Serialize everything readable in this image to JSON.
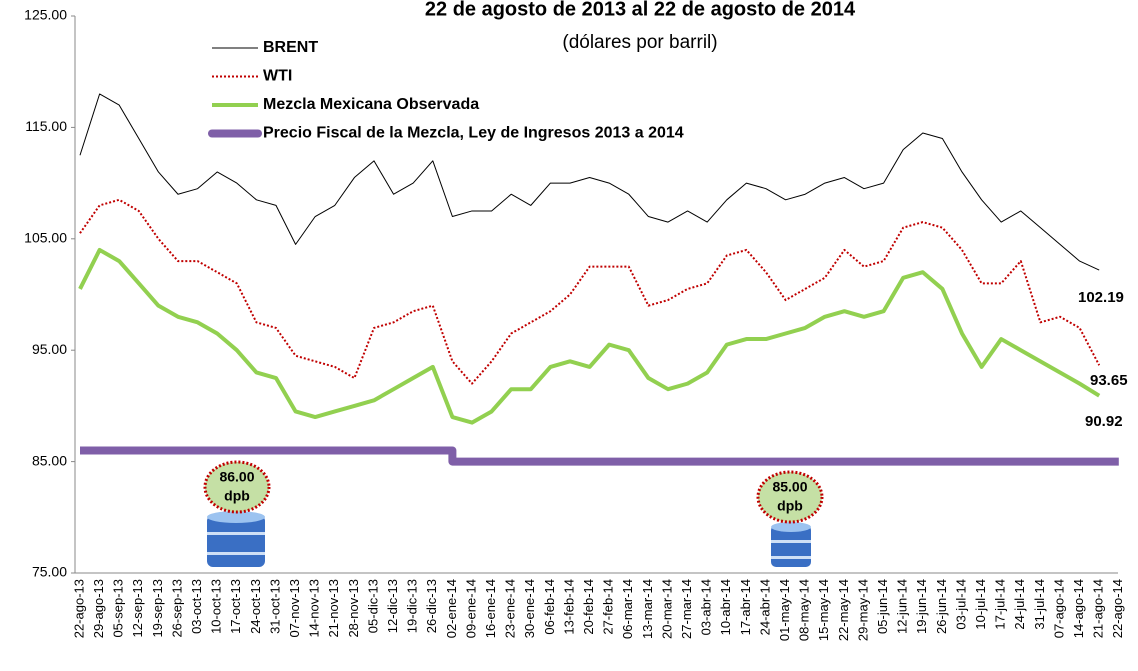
{
  "chart_data": {
    "type": "line",
    "title": "22 de agosto de 2013 al 22 de agosto de 2014",
    "subtitle": "(dólares por barril)",
    "categories": [
      "22-ago-13",
      "29-ago-13",
      "05-sep-13",
      "12-sep-13",
      "19-sep-13",
      "26-sep-13",
      "03-oct-13",
      "10-oct-13",
      "17-oct-13",
      "24-oct-13",
      "31-oct-13",
      "07-nov-13",
      "14-nov-13",
      "21-nov-13",
      "28-nov-13",
      "05-dic-13",
      "12-dic-13",
      "19-dic-13",
      "26-dic-13",
      "02-ene-14",
      "09-ene-14",
      "16-ene-14",
      "23-ene-14",
      "30-ene-14",
      "06-feb-14",
      "13-feb-14",
      "20-feb-14",
      "27-feb-14",
      "06-mar-14",
      "13-mar-14",
      "20-mar-14",
      "27-mar-14",
      "03-abr-14",
      "10-abr-14",
      "17-abr-14",
      "24-abr-14",
      "01-may-14",
      "08-may-14",
      "15-may-14",
      "22-may-14",
      "29-may-14",
      "05-jun-14",
      "12-jun-14",
      "19-jun-14",
      "26-jun-14",
      "03-jul-14",
      "10-jul-14",
      "17-jul-14",
      "24-jul-14",
      "31-jul-14",
      "07-ago-14",
      "14-ago-14",
      "21-ago-14",
      "22-ago-14"
    ],
    "series": [
      {
        "name": "BRENT",
        "color": "#000000",
        "width": 1,
        "dash": "none",
        "values": [
          112.5,
          118,
          117,
          114,
          111,
          109,
          109.5,
          111,
          110,
          108.5,
          108,
          104.5,
          107,
          108,
          110.5,
          112,
          109,
          110,
          112,
          107,
          107.5,
          107.5,
          109,
          108,
          110,
          110,
          110.5,
          110,
          109,
          107,
          106.5,
          107.5,
          106.5,
          108.5,
          110,
          109.5,
          108.5,
          109,
          110,
          110.5,
          109.5,
          110,
          113,
          114.5,
          114,
          111,
          108.5,
          106.5,
          107.5,
          106,
          104.5,
          103,
          102.19,
          null
        ]
      },
      {
        "name": "WTI",
        "color": "#c00000",
        "width": 2,
        "dash": "2,2",
        "values": [
          105.5,
          108,
          108.5,
          107.5,
          105,
          103,
          103,
          102,
          101,
          97.5,
          97,
          94.5,
          94,
          93.5,
          92.5,
          97,
          97.5,
          98.5,
          99,
          94,
          92,
          94,
          96.5,
          97.5,
          98.5,
          100,
          102.5,
          102.5,
          102.5,
          99,
          99.5,
          100.5,
          101,
          103.5,
          104,
          102,
          99.5,
          100.5,
          101.5,
          104,
          102.5,
          103,
          106,
          106.5,
          106,
          104,
          101,
          101,
          103,
          97.5,
          98,
          97,
          93.65,
          null
        ]
      },
      {
        "name": "Mezcla Mexicana Observada",
        "color": "#92d050",
        "width": 4,
        "dash": "none",
        "values": [
          100.5,
          104,
          103,
          101,
          99,
          98,
          97.5,
          96.5,
          95,
          93,
          92.5,
          89.5,
          89,
          89.5,
          90,
          90.5,
          91.5,
          92.5,
          93.5,
          89,
          88.5,
          89.5,
          91.5,
          91.5,
          93.5,
          94,
          93.5,
          95.5,
          95,
          92.5,
          91.5,
          92,
          93,
          95.5,
          96,
          96,
          96.5,
          97,
          98,
          98.5,
          98,
          98.5,
          101.5,
          102,
          100.5,
          96.5,
          93.5,
          96,
          95,
          94,
          93,
          92,
          90.92,
          null
        ]
      },
      {
        "name": "Precio Fiscal de la Mezcla, Ley de Ingresos 2013 a 2014",
        "color": "#7f5fa8",
        "width": 8,
        "dash": "none",
        "step": true,
        "values": [
          86,
          86,
          86,
          86,
          86,
          86,
          86,
          86,
          86,
          86,
          86,
          86,
          86,
          86,
          86,
          86,
          86,
          86,
          86,
          85,
          85,
          85,
          85,
          85,
          85,
          85,
          85,
          85,
          85,
          85,
          85,
          85,
          85,
          85,
          85,
          85,
          85,
          85,
          85,
          85,
          85,
          85,
          85,
          85,
          85,
          85,
          85,
          85,
          85,
          85,
          85,
          85,
          85,
          85
        ]
      }
    ],
    "annotations": [
      {
        "value": "86.00",
        "unit": "dpb"
      },
      {
        "value": "85.00",
        "unit": "dpb"
      }
    ],
    "ylim": [
      75,
      125
    ],
    "yticks": [
      {
        "value": 75,
        "label": "75.00"
      },
      {
        "value": 85,
        "label": "85.00"
      },
      {
        "value": 95,
        "label": "95.00"
      },
      {
        "value": 105,
        "label": "105.00"
      },
      {
        "value": 115,
        "label": "115.00"
      },
      {
        "value": 125,
        "label": "125.00"
      }
    ],
    "grid": false,
    "legend": "upper left"
  }
}
